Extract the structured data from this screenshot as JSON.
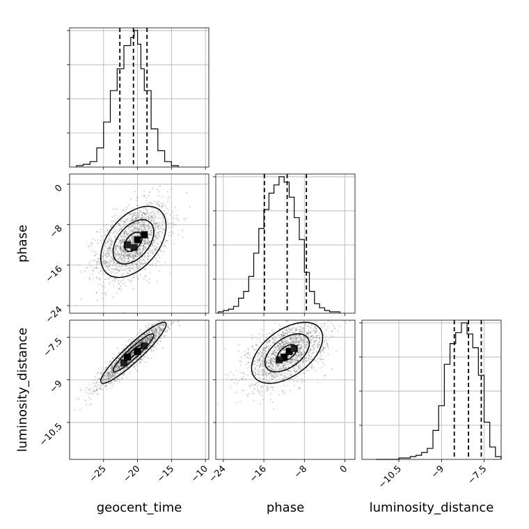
{
  "chart_data": {
    "type": "corner",
    "parameters": [
      {
        "key": "geocent_time",
        "label": "geocent_time",
        "range": [
          -30,
          -9.5
        ],
        "ticks": [
          -25,
          -20,
          -15,
          -10
        ],
        "quantiles": [
          -22.6,
          -20.6,
          -18.6
        ]
      },
      {
        "key": "phase",
        "label": "phase",
        "range": [
          -25.5,
          2
        ],
        "ticks": [
          -24,
          -16,
          -8,
          0
        ],
        "quantiles": [
          -15.9,
          -11.4,
          -7.6
        ]
      },
      {
        "key": "luminosity_distance",
        "label": "luminosity_distance",
        "range": [
          -11.8,
          -6.9
        ],
        "ticks": [
          -10.5,
          -9.0,
          -7.5
        ],
        "quantiles": [
          -8.55,
          -8.05,
          -7.6
        ]
      }
    ],
    "histograms": [
      {
        "param": "geocent_time",
        "bin_edges": [
          -29,
          -28,
          -27,
          -26,
          -25,
          -24,
          -23,
          -22,
          -21,
          -20.5,
          -20,
          -19.5,
          -19,
          -18,
          -17,
          -16,
          -15,
          -14
        ],
        "counts": [
          0.01,
          0.02,
          0.04,
          0.14,
          0.33,
          0.56,
          0.72,
          0.89,
          0.95,
          1.0,
          0.9,
          0.72,
          0.56,
          0.28,
          0.12,
          0.04,
          0.01
        ]
      },
      {
        "param": "phase",
        "bin_edges": [
          -25,
          -24,
          -23,
          -22,
          -21,
          -20,
          -19,
          -18,
          -17,
          -16,
          -15,
          -14,
          -13,
          -12,
          -11,
          -10,
          -9,
          -8,
          -7,
          -6,
          -5,
          -4,
          -3,
          -2,
          -1
        ],
        "counts": [
          0.01,
          0.02,
          0.03,
          0.05,
          0.11,
          0.16,
          0.27,
          0.44,
          0.62,
          0.76,
          0.88,
          0.94,
          1.0,
          0.96,
          0.85,
          0.7,
          0.54,
          0.3,
          0.16,
          0.07,
          0.04,
          0.02,
          0.01,
          0.01
        ]
      },
      {
        "param": "luminosity_distance",
        "bin_edges": [
          -11.3,
          -11.1,
          -10.9,
          -10.7,
          -10.5,
          -10.3,
          -10.1,
          -9.9,
          -9.7,
          -9.5,
          -9.3,
          -9.1,
          -8.9,
          -8.7,
          -8.5,
          -8.3,
          -8.1,
          -7.9,
          -7.7,
          -7.5,
          -7.3,
          -7.1,
          -6.9
        ],
        "counts": [
          0.0,
          0.0,
          0.0,
          0.0,
          0.01,
          0.01,
          0.02,
          0.03,
          0.05,
          0.08,
          0.21,
          0.39,
          0.69,
          0.84,
          0.92,
          0.99,
          0.91,
          0.81,
          0.61,
          0.27,
          0.09,
          0.02
        ]
      }
    ],
    "density_2d": [
      {
        "x": "geocent_time",
        "y": "phase",
        "mean": [
          -20.6,
          -11.4
        ],
        "sd": [
          2.6,
          3.8
        ],
        "rho": 0.45,
        "n_points": 1800,
        "contour_levels": [
          0.5,
          1.15,
          1.85
        ],
        "peak_cells": [
          [
            -20.0,
            -11.0
          ],
          [
            -19.0,
            -10.0
          ],
          [
            -20.5,
            -12.5
          ],
          [
            -21.5,
            -12.0
          ]
        ]
      },
      {
        "x": "geocent_time",
        "y": "luminosity_distance",
        "mean": [
          -20.6,
          -8.05
        ],
        "sd": [
          2.6,
          0.58
        ],
        "rho": 0.93,
        "n_points": 1800,
        "contour_levels": [
          0.5,
          1.15,
          1.85
        ],
        "peak_cells": [
          [
            -20.0,
            -8.0
          ],
          [
            -21.5,
            -8.2
          ],
          [
            -22.0,
            -8.4
          ],
          [
            -19.0,
            -7.8
          ]
        ]
      },
      {
        "x": "phase",
        "y": "luminosity_distance",
        "mean": [
          -11.4,
          -8.05
        ],
        "sd": [
          3.8,
          0.58
        ],
        "rho": 0.5,
        "n_points": 1800,
        "contour_levels": [
          0.5,
          1.15,
          1.85
        ],
        "peak_cells": [
          [
            -12.0,
            -8.2
          ],
          [
            -11.0,
            -8.0
          ],
          [
            -13.0,
            -8.3
          ],
          [
            -10.0,
            -7.9
          ]
        ]
      }
    ],
    "grid": true,
    "histogram_style": "step",
    "quantile_lines": "dashed"
  }
}
